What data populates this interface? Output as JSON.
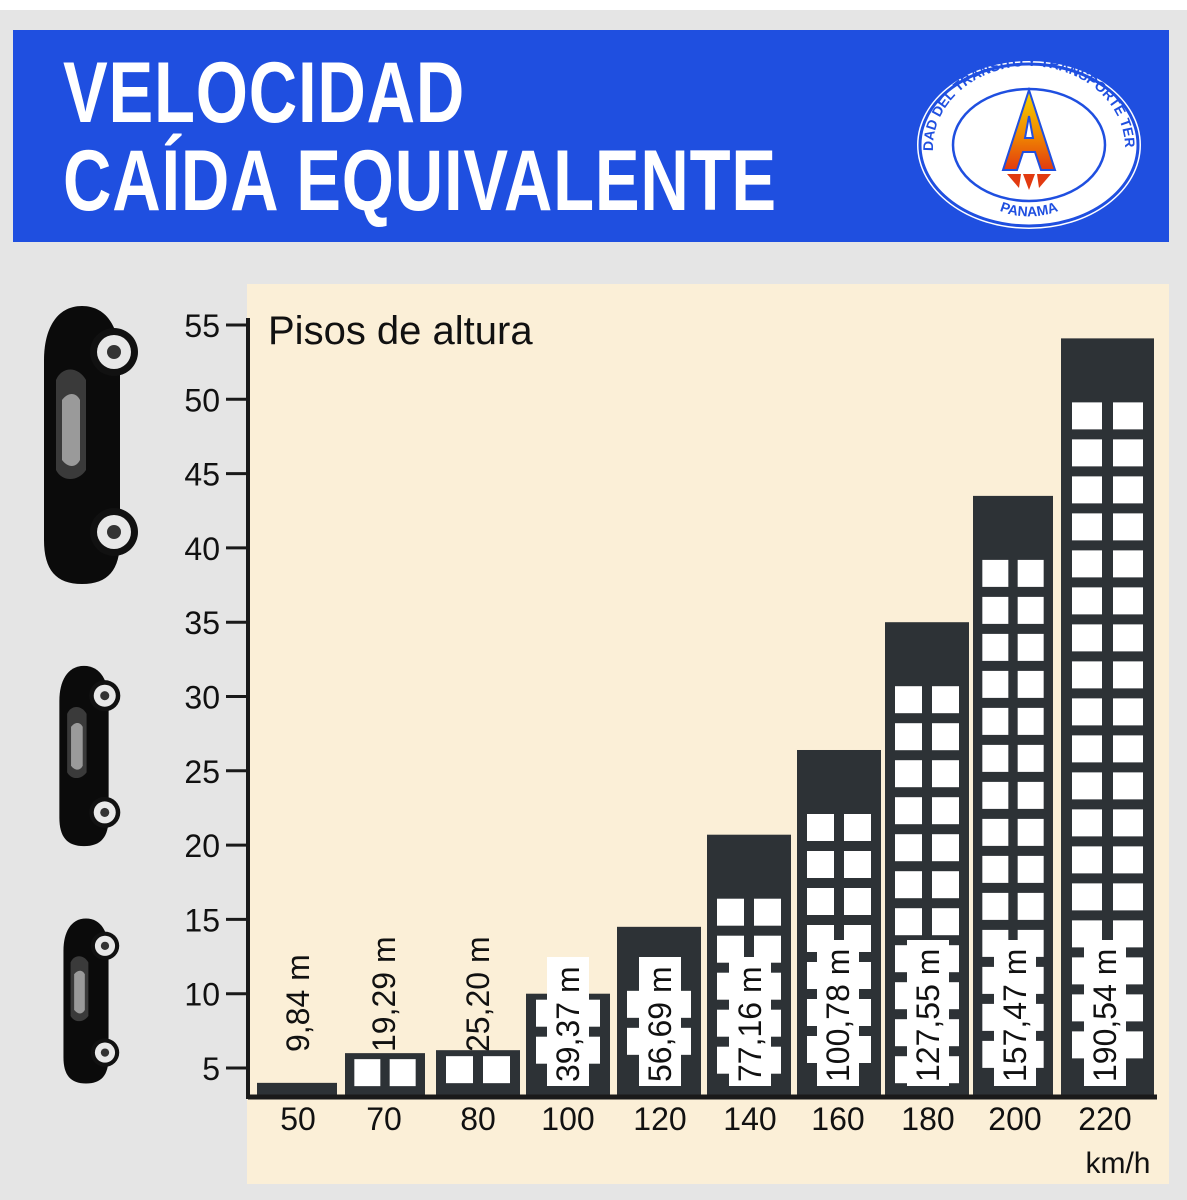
{
  "header": {
    "title_line1": "VELOCIDAD",
    "title_line2": "CAÍDA EQUIVALENTE"
  },
  "logo": {
    "icon": "attt-logo-icon",
    "letter": "A",
    "ring_text": "AUTORIDAD DEL TRANSITO Y TRANSPORTE TERRESTRE",
    "bottom_text": "PANAMA"
  },
  "colors": {
    "banner": "#1f4fe0",
    "panel": "#fbefd7",
    "building": "#2d3236",
    "window": "#ffffff",
    "axis": "#1a1a1a"
  },
  "car_icons": [
    "car-large-icon",
    "car-medium-icon",
    "car-small-icon"
  ],
  "chart_data": {
    "type": "bar",
    "title": "Pisos de altura",
    "xlabel": "km/h",
    "ylabel": "",
    "ylim": [
      3,
      56
    ],
    "y_ticks": [
      5,
      10,
      15,
      20,
      25,
      30,
      35,
      40,
      45,
      50,
      55
    ],
    "categories": [
      "50",
      "70",
      "80",
      "100",
      "120",
      "140",
      "160",
      "180",
      "200",
      "220"
    ],
    "values": [
      4,
      6,
      6.2,
      10,
      14.5,
      20.7,
      26.4,
      35,
      43.5,
      54.1
    ],
    "labels": [
      "9,84 m",
      "19,29 m",
      "25,20 m",
      "39,37 m",
      "56,69 m",
      "77,16 m",
      "100,78 m",
      "127,55 m",
      "157,47 m",
      "190,54 m"
    ],
    "grid": false,
    "legend": "none"
  }
}
